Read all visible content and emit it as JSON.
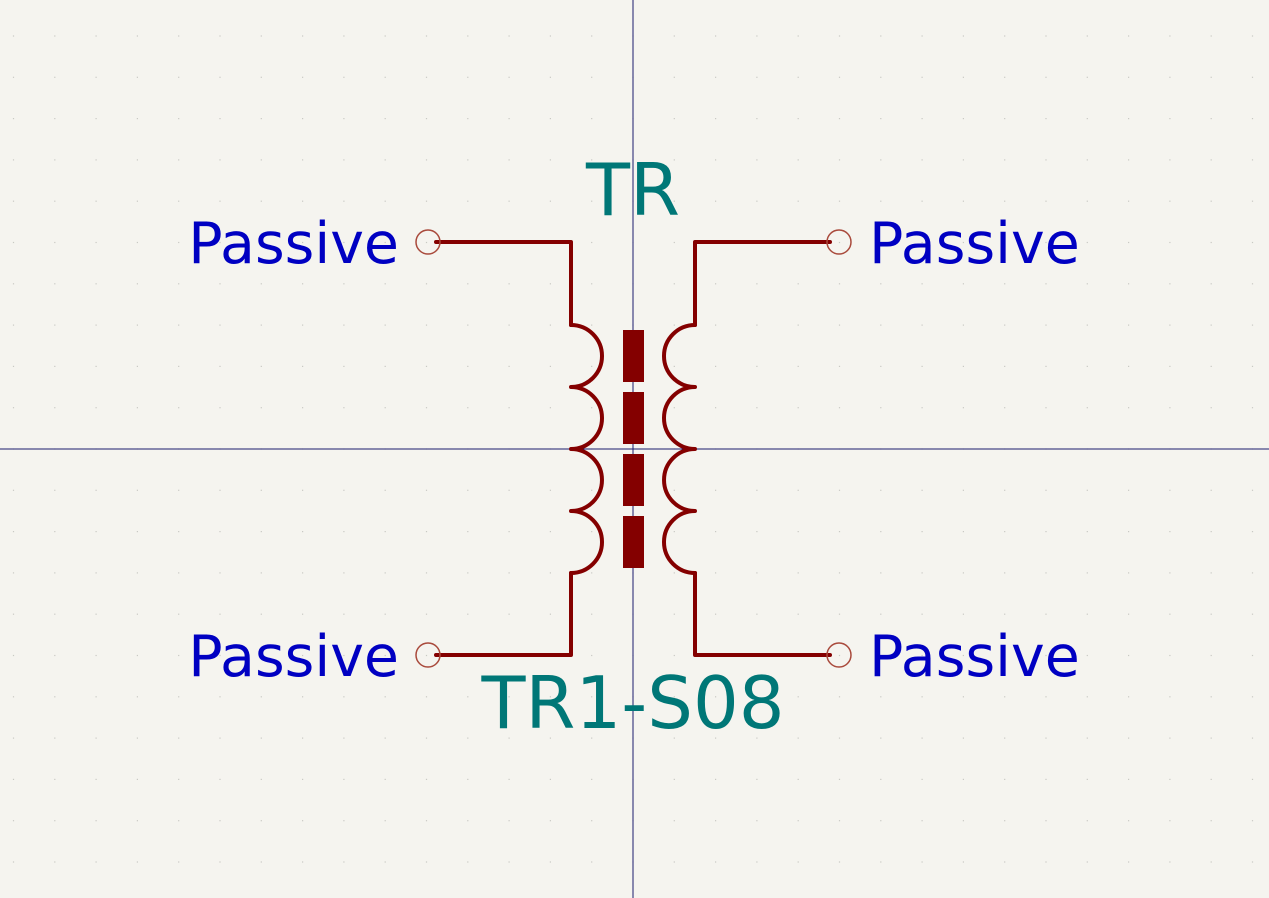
{
  "symbol": {
    "reference": "TR",
    "value": "TR1-S08",
    "pins": [
      {
        "id": "pin-top-left",
        "type": "Passive"
      },
      {
        "id": "pin-top-right",
        "type": "Passive"
      },
      {
        "id": "pin-bottom-left",
        "type": "Passive"
      },
      {
        "id": "pin-bottom-right",
        "type": "Passive"
      }
    ]
  },
  "colors": {
    "background": "#f5f4ef",
    "grid_dot": "#c9c9c4",
    "crosshair": "#1c1c6e",
    "body": "#840000",
    "pin_end": "#a94a3c",
    "pin_type_text": "#0000c2",
    "field_text": "#007777"
  }
}
